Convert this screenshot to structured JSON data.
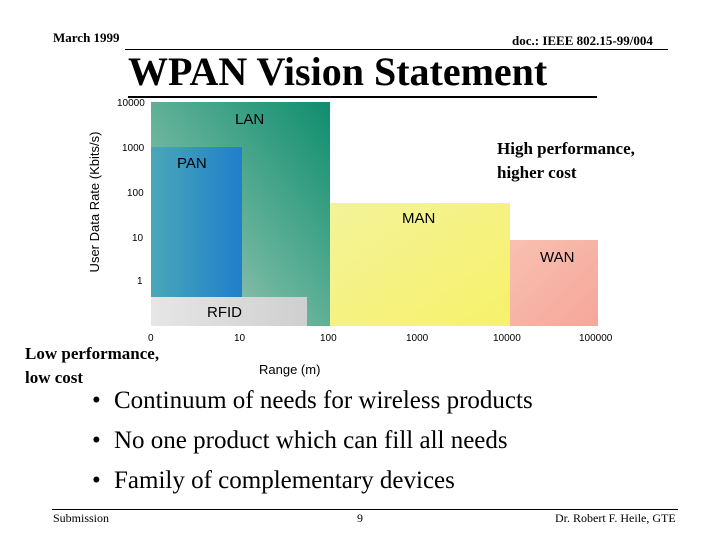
{
  "header": {
    "date": "March 1999",
    "doc": "doc.: IEEE 802.15-99/004"
  },
  "title": "WPAN Vision Statement",
  "chart_data": {
    "type": "diagram",
    "ylabel": "User Data Rate (Kbits/s)",
    "xlabel": "Range (m)",
    "y_ticks": [
      "10000",
      "1000",
      "100",
      "10",
      "1"
    ],
    "x_ticks": [
      "0",
      "10",
      "100",
      "1000",
      "10000",
      "100000"
    ],
    "regions": [
      {
        "name": "LAN",
        "range_m": [
          0,
          100
        ],
        "rate_kbps": [
          1,
          10000
        ],
        "color": "#2e9a7a"
      },
      {
        "name": "PAN",
        "range_m": [
          0,
          10
        ],
        "rate_kbps": [
          1,
          1000
        ],
        "color": "#2f8ec2"
      },
      {
        "name": "MAN",
        "range_m": [
          100,
          10000
        ],
        "rate_kbps": [
          0,
          100
        ],
        "color": "#f6f58a"
      },
      {
        "name": "WAN",
        "range_m": [
          10000,
          100000
        ],
        "rate_kbps": [
          0,
          10
        ],
        "color": "#f7b0a0"
      },
      {
        "name": "RFID",
        "range_m": [
          0,
          100
        ],
        "rate_kbps": [
          0,
          0.6
        ],
        "color": "#d3d3d3"
      }
    ]
  },
  "annotations": {
    "high": [
      "High performance,",
      "higher cost"
    ],
    "low": [
      "Low performance,",
      "low cost"
    ]
  },
  "bullets": [
    "Continuum of needs for wireless products",
    "No one product which can fill all needs",
    "Family of complementary devices"
  ],
  "footer": {
    "left": "Submission",
    "page": "9",
    "right": "Dr. Robert F. Heile, GTE"
  }
}
